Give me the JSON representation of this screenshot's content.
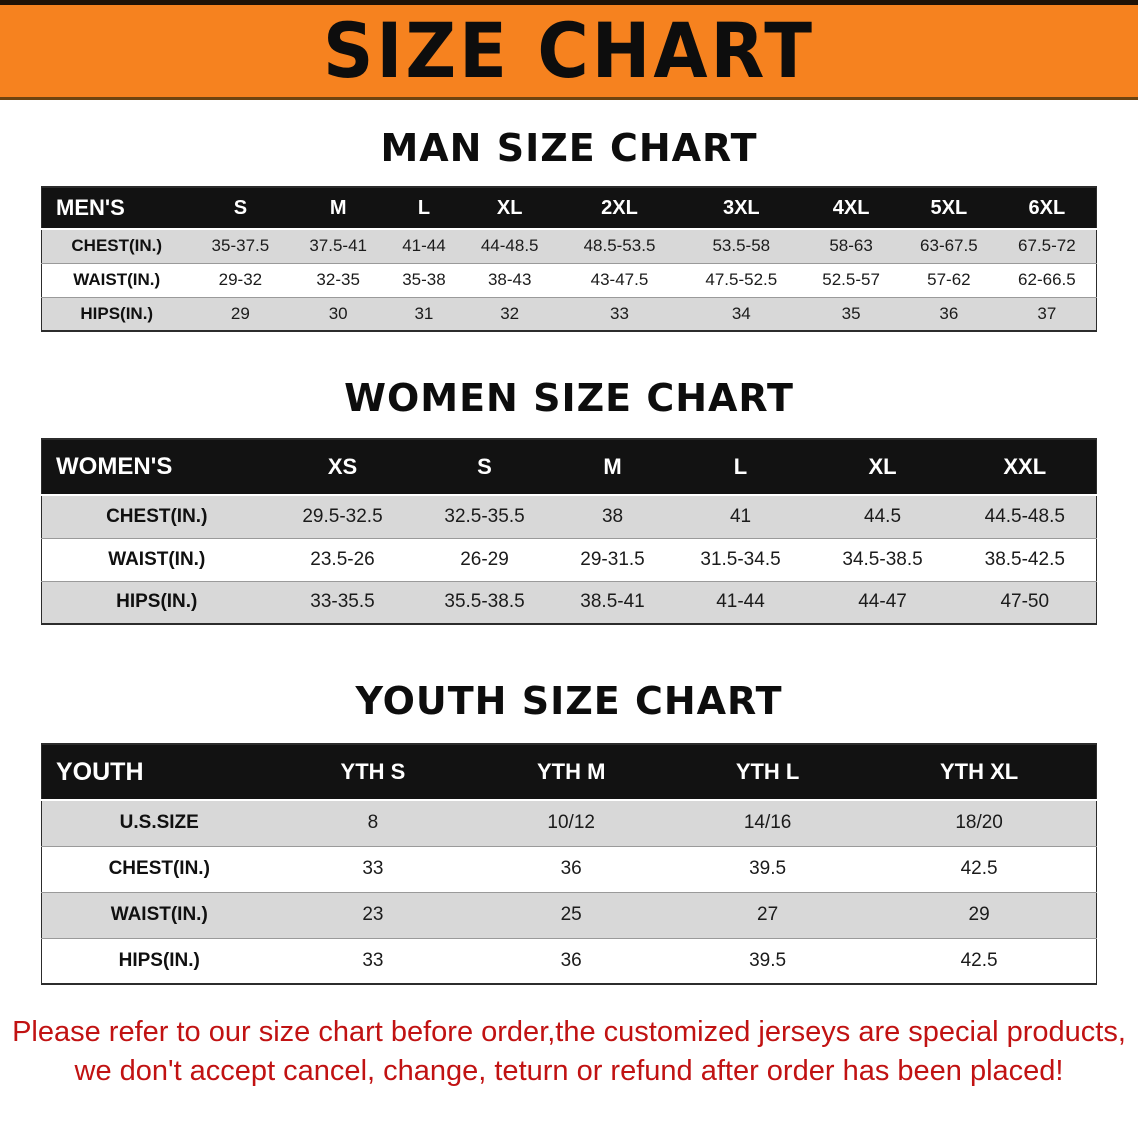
{
  "banner": {
    "title": "SIZE CHART"
  },
  "colors": {
    "banner_bg": "#f6821f",
    "table_header_bg": "#121212",
    "row_gray": "#d8d8d8",
    "notice_red": "#c11212"
  },
  "sections": [
    {
      "heading": "MAN SIZE CHART",
      "table": {
        "header": [
          "MEN'S",
          "S",
          "M",
          "L",
          "XL",
          "2XL",
          "3XL",
          "4XL",
          "5XL",
          "6XL"
        ],
        "rows": [
          {
            "label": "CHEST(IN.)",
            "values": [
              "35-37.5",
              "37.5-41",
              "41-44",
              "44-48.5",
              "48.5-53.5",
              "53.5-58",
              "58-63",
              "63-67.5",
              "67.5-72"
            ]
          },
          {
            "label": "WAIST(IN.)",
            "values": [
              "29-32",
              "32-35",
              "35-38",
              "38-43",
              "43-47.5",
              "47.5-52.5",
              "52.5-57",
              "57-62",
              "62-66.5"
            ]
          },
          {
            "label": "HIPS(IN.)",
            "values": [
              "29",
              "30",
              "31",
              "32",
              "33",
              "34",
              "35",
              "36",
              "37"
            ]
          }
        ]
      }
    },
    {
      "heading": "WOMEN SIZE CHART",
      "table": {
        "header": [
          "WOMEN'S",
          "XS",
          "S",
          "M",
          "L",
          "XL",
          "XXL"
        ],
        "rows": [
          {
            "label": "CHEST(IN.)",
            "values": [
              "29.5-32.5",
              "32.5-35.5",
              "38",
              "41",
              "44.5",
              "44.5-48.5"
            ]
          },
          {
            "label": "WAIST(IN.)",
            "values": [
              "23.5-26",
              "26-29",
              "29-31.5",
              "31.5-34.5",
              "34.5-38.5",
              "38.5-42.5"
            ]
          },
          {
            "label": "HIPS(IN.)",
            "values": [
              "33-35.5",
              "35.5-38.5",
              "38.5-41",
              "41-44",
              "44-47",
              "47-50"
            ]
          }
        ]
      }
    },
    {
      "heading": "YOUTH SIZE CHART",
      "table": {
        "header": [
          "YOUTH",
          "YTH S",
          "YTH M",
          "YTH L",
          "YTH XL"
        ],
        "rows": [
          {
            "label": "U.S.SIZE",
            "values": [
              "8",
              "10/12",
              "14/16",
              "18/20"
            ]
          },
          {
            "label": "CHEST(IN.)",
            "values": [
              "33",
              "36",
              "39.5",
              "42.5"
            ]
          },
          {
            "label": "WAIST(IN.)",
            "values": [
              "23",
              "25",
              "27",
              "29"
            ]
          },
          {
            "label": "HIPS(IN.)",
            "values": [
              "33",
              "36",
              "39.5",
              "42.5"
            ]
          }
        ]
      }
    }
  ],
  "footer": {
    "line1": "Please refer to our size chart before order,the customized jerseys are special products,",
    "line2": "we don't accept cancel, change, teturn or refund after order has been placed!"
  }
}
